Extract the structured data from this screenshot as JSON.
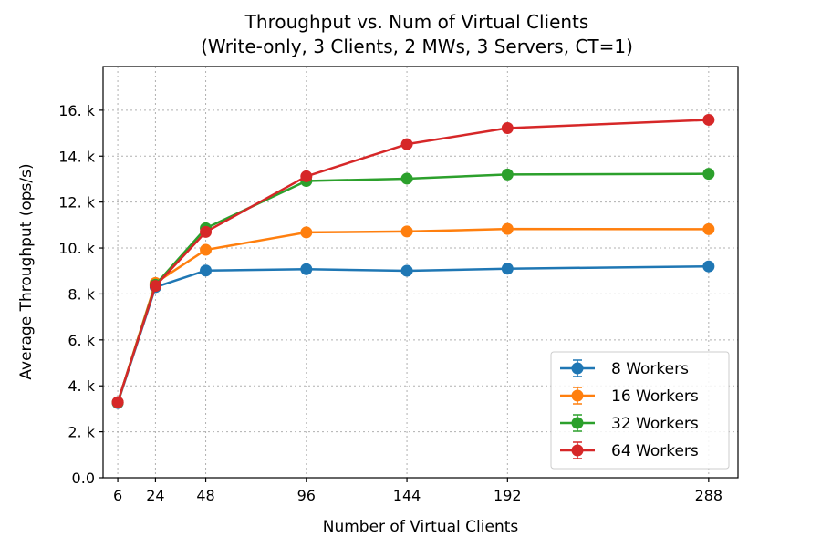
{
  "chart_data": {
    "type": "line",
    "title_line1": "Throughput vs. Num of Virtual Clients",
    "title_line2": "(Write-only, 3 Clients, 2 MWs, 3 Servers, CT=1)",
    "xlabel": "Number of Virtual Clients",
    "ylabel": "Average Throughput (ops/s)",
    "x": [
      6,
      24,
      48,
      96,
      144,
      192,
      288
    ],
    "x_tick_labels": [
      "6",
      "24",
      "48",
      "96",
      "144",
      "192",
      "288"
    ],
    "xlim": [
      -1,
      302
    ],
    "ylim": [
      0,
      17900
    ],
    "y_ticks": [
      0,
      2000,
      4000,
      6000,
      8000,
      10000,
      12000,
      14000,
      16000
    ],
    "y_tick_labels": [
      "0.0",
      "2. k",
      "4. k",
      "6. k",
      "8. k",
      "10. k",
      "12. k",
      "14. k",
      "16. k"
    ],
    "grid": true,
    "legend_position": "lower-right",
    "series": [
      {
        "name": "8 Workers",
        "color": "#1f77b4",
        "values": [
          3250,
          8300,
          9020,
          9080,
          9010,
          9100,
          9200
        ]
      },
      {
        "name": "16 Workers",
        "color": "#ff7f0e",
        "values": [
          3270,
          8480,
          9920,
          10680,
          10720,
          10830,
          10820
        ]
      },
      {
        "name": "32 Workers",
        "color": "#2ca02c",
        "values": [
          3280,
          8400,
          10860,
          12920,
          13020,
          13200,
          13230
        ]
      },
      {
        "name": "64 Workers",
        "color": "#d62728",
        "values": [
          3290,
          8350,
          10700,
          13120,
          14520,
          15220,
          15580
        ]
      }
    ]
  }
}
